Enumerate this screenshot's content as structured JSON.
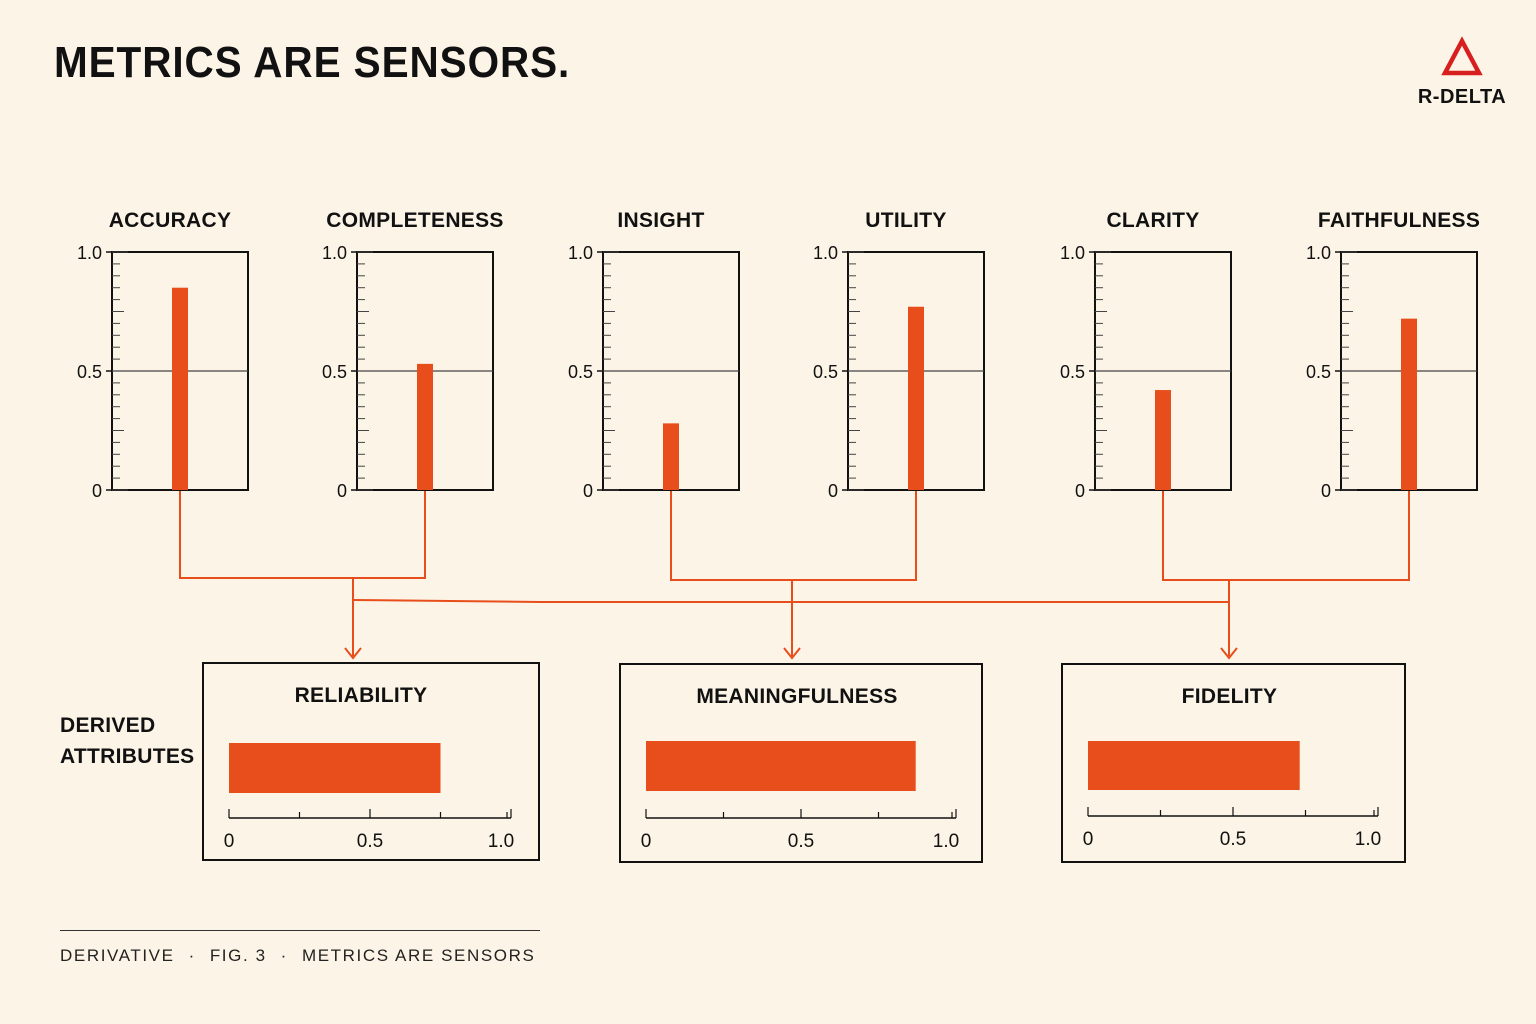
{
  "header": {
    "title": "METRICS ARE SENSORS.",
    "logo_text": "R-DELTA",
    "logo_icon": "delta-triangle-icon"
  },
  "colors": {
    "accent": "#e84e1b",
    "line": "#111111",
    "background": "#fcf4e7"
  },
  "chart_data": [
    {
      "type": "bar",
      "group": "metrics",
      "orientation": "vertical",
      "ylim": [
        0,
        1.0
      ],
      "ytick_labels": [
        "0",
        "0.5",
        "1.0"
      ],
      "panels": [
        {
          "name": "ACCURACY",
          "value": 0.85
        },
        {
          "name": "COMPLETENESS",
          "value": 0.53
        },
        {
          "name": "INSIGHT",
          "value": 0.28
        },
        {
          "name": "UTILITY",
          "value": 0.77
        },
        {
          "name": "CLARITY",
          "value": 0.42
        },
        {
          "name": "FAITHFULNESS",
          "value": 0.72
        }
      ]
    },
    {
      "type": "bar",
      "group": "derived",
      "orientation": "horizontal",
      "xlim": [
        0,
        1.0
      ],
      "xtick_labels": [
        "0",
        "0.5",
        "1.0"
      ],
      "panels": [
        {
          "name": "RELIABILITY",
          "value": 0.75,
          "inputs": [
            "ACCURACY",
            "COMPLETENESS"
          ]
        },
        {
          "name": "MEANINGFULNESS",
          "value": 0.87,
          "inputs": [
            "INSIGHT",
            "UTILITY"
          ]
        },
        {
          "name": "FIDELITY",
          "value": 0.73,
          "inputs": [
            "CLARITY",
            "FAITHFULNESS"
          ]
        }
      ]
    }
  ],
  "derived_label": {
    "line1": "DERIVED",
    "line2": "ATTRIBUTES"
  },
  "footer": {
    "part1": "DERIVATIVE",
    "part2": "FIG. 3",
    "part3": "METRICS ARE SENSORS",
    "separator": "·"
  }
}
